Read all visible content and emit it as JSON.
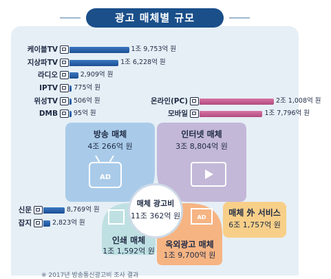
{
  "title": "광고 매체별 규모",
  "chart_data": {
    "type": "bar",
    "title": "광고 매체별 규모",
    "unit": "원",
    "categories": [
      "케이블TV",
      "지상파TV",
      "라디오",
      "IPTV",
      "위성TV",
      "DMB",
      "온라인(PC)",
      "모바일",
      "신문",
      "잡지"
    ],
    "values": [
      19753,
      16228,
      2909,
      775,
      506,
      95,
      21008,
      17796,
      8769,
      2823
    ],
    "value_labels": [
      "1조 9,753억 원",
      "1조 6,228억 원",
      "2,909억 원",
      "775억 원",
      "506억 원",
      "95억 원",
      "2조 1,008억 원",
      "1조 7,796억 원",
      "8,769억 원",
      "2,823억 원"
    ],
    "groups": [
      {
        "name": "방송 매체",
        "value_label": "4조 266억 원",
        "color": "#a9cbe9"
      },
      {
        "name": "인터넷 매체",
        "value_label": "3조 8,804억 원",
        "color": "#c3b8d8"
      },
      {
        "name": "인쇄 매체",
        "value_label": "1조 1,592억 원",
        "color": "#bfe0e2"
      },
      {
        "name": "옥외광고 매체",
        "value_label": "1조 9,700억 원",
        "color": "#f6b483"
      },
      {
        "name": "매체 外 서비스",
        "value_label": "6조 1,757억 원",
        "color": "#f7cf88"
      }
    ],
    "total": {
      "name": "매체 광고비",
      "value_label": "11조 362억 원"
    },
    "colors": {
      "broadcast_bar": "#2c63a8",
      "internet_bar": "#b24a7f",
      "print_bar": "#2c63a8",
      "accent": "#1a4f8a"
    }
  },
  "icons": {
    "cable": "tv-icon",
    "terrestrial": "tv-antenna-icon",
    "radio": "radio-icon",
    "iptv": "iptv-icon",
    "satellite": "satellite-icon",
    "dmb": "dmb-icon",
    "online": "browser-icon",
    "mobile": "phone-icon",
    "newspaper": "newspaper-icon",
    "magazine": "magazine-icon"
  },
  "footer_note": "※ 2017년 방송통신광고비 조사 결과"
}
